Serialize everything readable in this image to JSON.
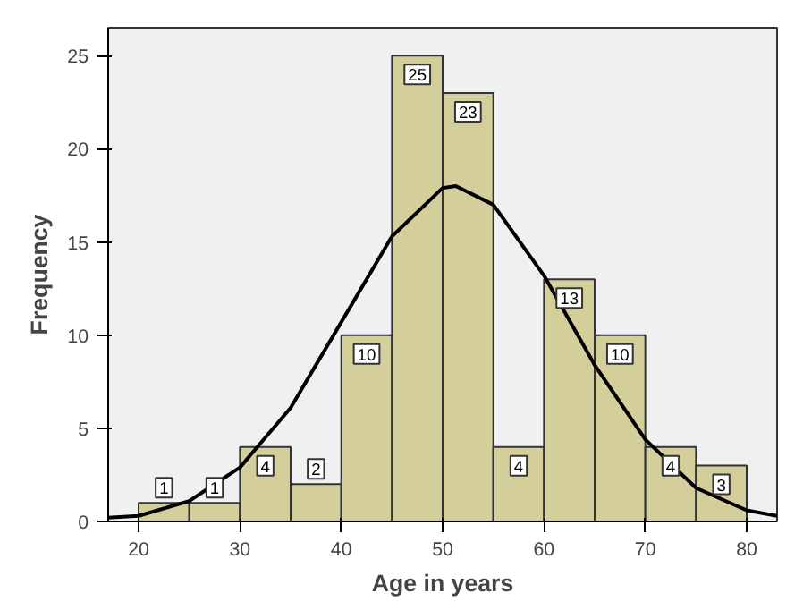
{
  "chart_data": {
    "type": "histogram",
    "xlabel": "Age in years",
    "ylabel": "Frequency",
    "bins": [
      20,
      25,
      30,
      35,
      40,
      45,
      50,
      55,
      60,
      65,
      70,
      75,
      80
    ],
    "values": [
      1,
      1,
      4,
      2,
      10,
      25,
      23,
      4,
      13,
      10,
      4,
      3
    ],
    "color": "#d4cf9a",
    "value_labels": [
      "1",
      "1",
      "4",
      "2",
      "10",
      "25",
      "23",
      "4",
      "13",
      "10",
      "4",
      "3"
    ],
    "series": [
      {
        "type": "line",
        "color": "#000000",
        "x": [
          17,
          20,
          25,
          30,
          35,
          40,
          45,
          50,
          51.3,
          55,
          60,
          65,
          70,
          75,
          80,
          83
        ],
        "values": [
          0.2,
          0.3,
          1.1,
          2.9,
          6.1,
          10.7,
          15.3,
          17.9,
          18,
          17.0,
          13.2,
          8.4,
          4.4,
          1.8,
          0.6,
          0.3
        ]
      }
    ],
    "xlim": [
      17,
      83
    ],
    "ylim": [
      0,
      26.5
    ],
    "xticks": [
      20,
      30,
      40,
      50,
      60,
      70,
      80
    ],
    "yticks": [
      0,
      5,
      10,
      15,
      20,
      25
    ],
    "grid": false
  }
}
